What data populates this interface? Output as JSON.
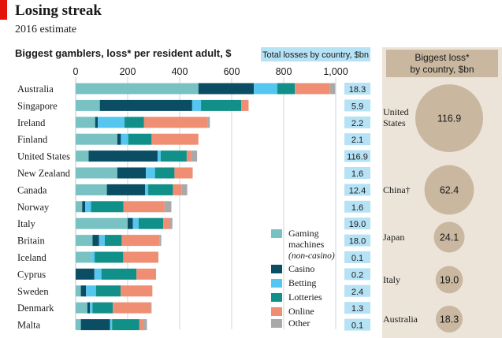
{
  "header": {
    "title": "Losing streak",
    "subtitle": "2016 estimate"
  },
  "colors": {
    "Gaming machines": "#78c2c4",
    "Casino": "#0b4d63",
    "Betting": "#55c6ef",
    "Lotteries": "#119089",
    "Online": "#ef8e73",
    "Other": "#a9a9a9",
    "Total badge": "#b6e2f5",
    "Bubble": "#c9b7a0",
    "Bubble panel": "#ece4d9"
  },
  "chart_data": [
    {
      "type": "bar",
      "stacked": true,
      "orientation": "horizontal",
      "title": "Biggest gamblers, loss* per resident adult, $",
      "xlim": [
        0,
        1000
      ],
      "xticks": [
        "0",
        "200",
        "400",
        "600",
        "800",
        "1,000"
      ],
      "categories": [
        "Australia",
        "Singapore",
        "Ireland",
        "Finland",
        "United States",
        "New Zealand",
        "Canada",
        "Norway",
        "Italy",
        "Britain",
        "Iceland",
        "Cyprus",
        "Sweden",
        "Denmark",
        "Malta"
      ],
      "series": [
        {
          "name": "Gaming machines",
          "sublabel": "(non-casino)",
          "values": [
            472,
            93,
            75,
            160,
            50,
            160,
            120,
            25,
            200,
            65,
            63,
            0,
            20,
            45,
            20
          ]
        },
        {
          "name": "Casino",
          "values": [
            213,
            355,
            10,
            14,
            265,
            110,
            147,
            12,
            20,
            25,
            0,
            72,
            20,
            10,
            112
          ]
        },
        {
          "name": "Betting",
          "values": [
            90,
            34,
            103,
            28,
            12,
            35,
            12,
            22,
            22,
            22,
            10,
            27,
            38,
            10,
            8
          ]
        },
        {
          "name": "Lotteries",
          "values": [
            68,
            155,
            75,
            90,
            100,
            75,
            95,
            125,
            95,
            65,
            110,
            135,
            95,
            78,
            105
          ]
        },
        {
          "name": "Online",
          "values": [
            135,
            28,
            245,
            180,
            18,
            70,
            33,
            158,
            25,
            145,
            135,
            75,
            122,
            146,
            17
          ]
        },
        {
          "name": "Other",
          "values": [
            20,
            0,
            8,
            0,
            22,
            0,
            22,
            26,
            10,
            7,
            0,
            0,
            0,
            3,
            12
          ]
        }
      ],
      "side_column": {
        "title": "Total losses by country, $bn",
        "values": [
          "18.3",
          "5.9",
          "2.2",
          "2.1",
          "116.9",
          "1.6",
          "12.4",
          "1.6",
          "19.0",
          "18.0",
          "0.1",
          "0.2",
          "2.4",
          "1.3",
          "0.1"
        ]
      },
      "legend": {
        "placement": "bottom-right"
      },
      "grid": true
    },
    {
      "type": "bubble",
      "title": "Biggest loss* by country, $bn",
      "categories": [
        "United States",
        "China†",
        "Japan",
        "Italy",
        "Australia"
      ],
      "values": [
        116.9,
        62.4,
        24.1,
        19.0,
        18.3
      ],
      "labels": [
        "116.9",
        "62.4",
        "24.1",
        "19.0",
        "18.3"
      ]
    }
  ]
}
